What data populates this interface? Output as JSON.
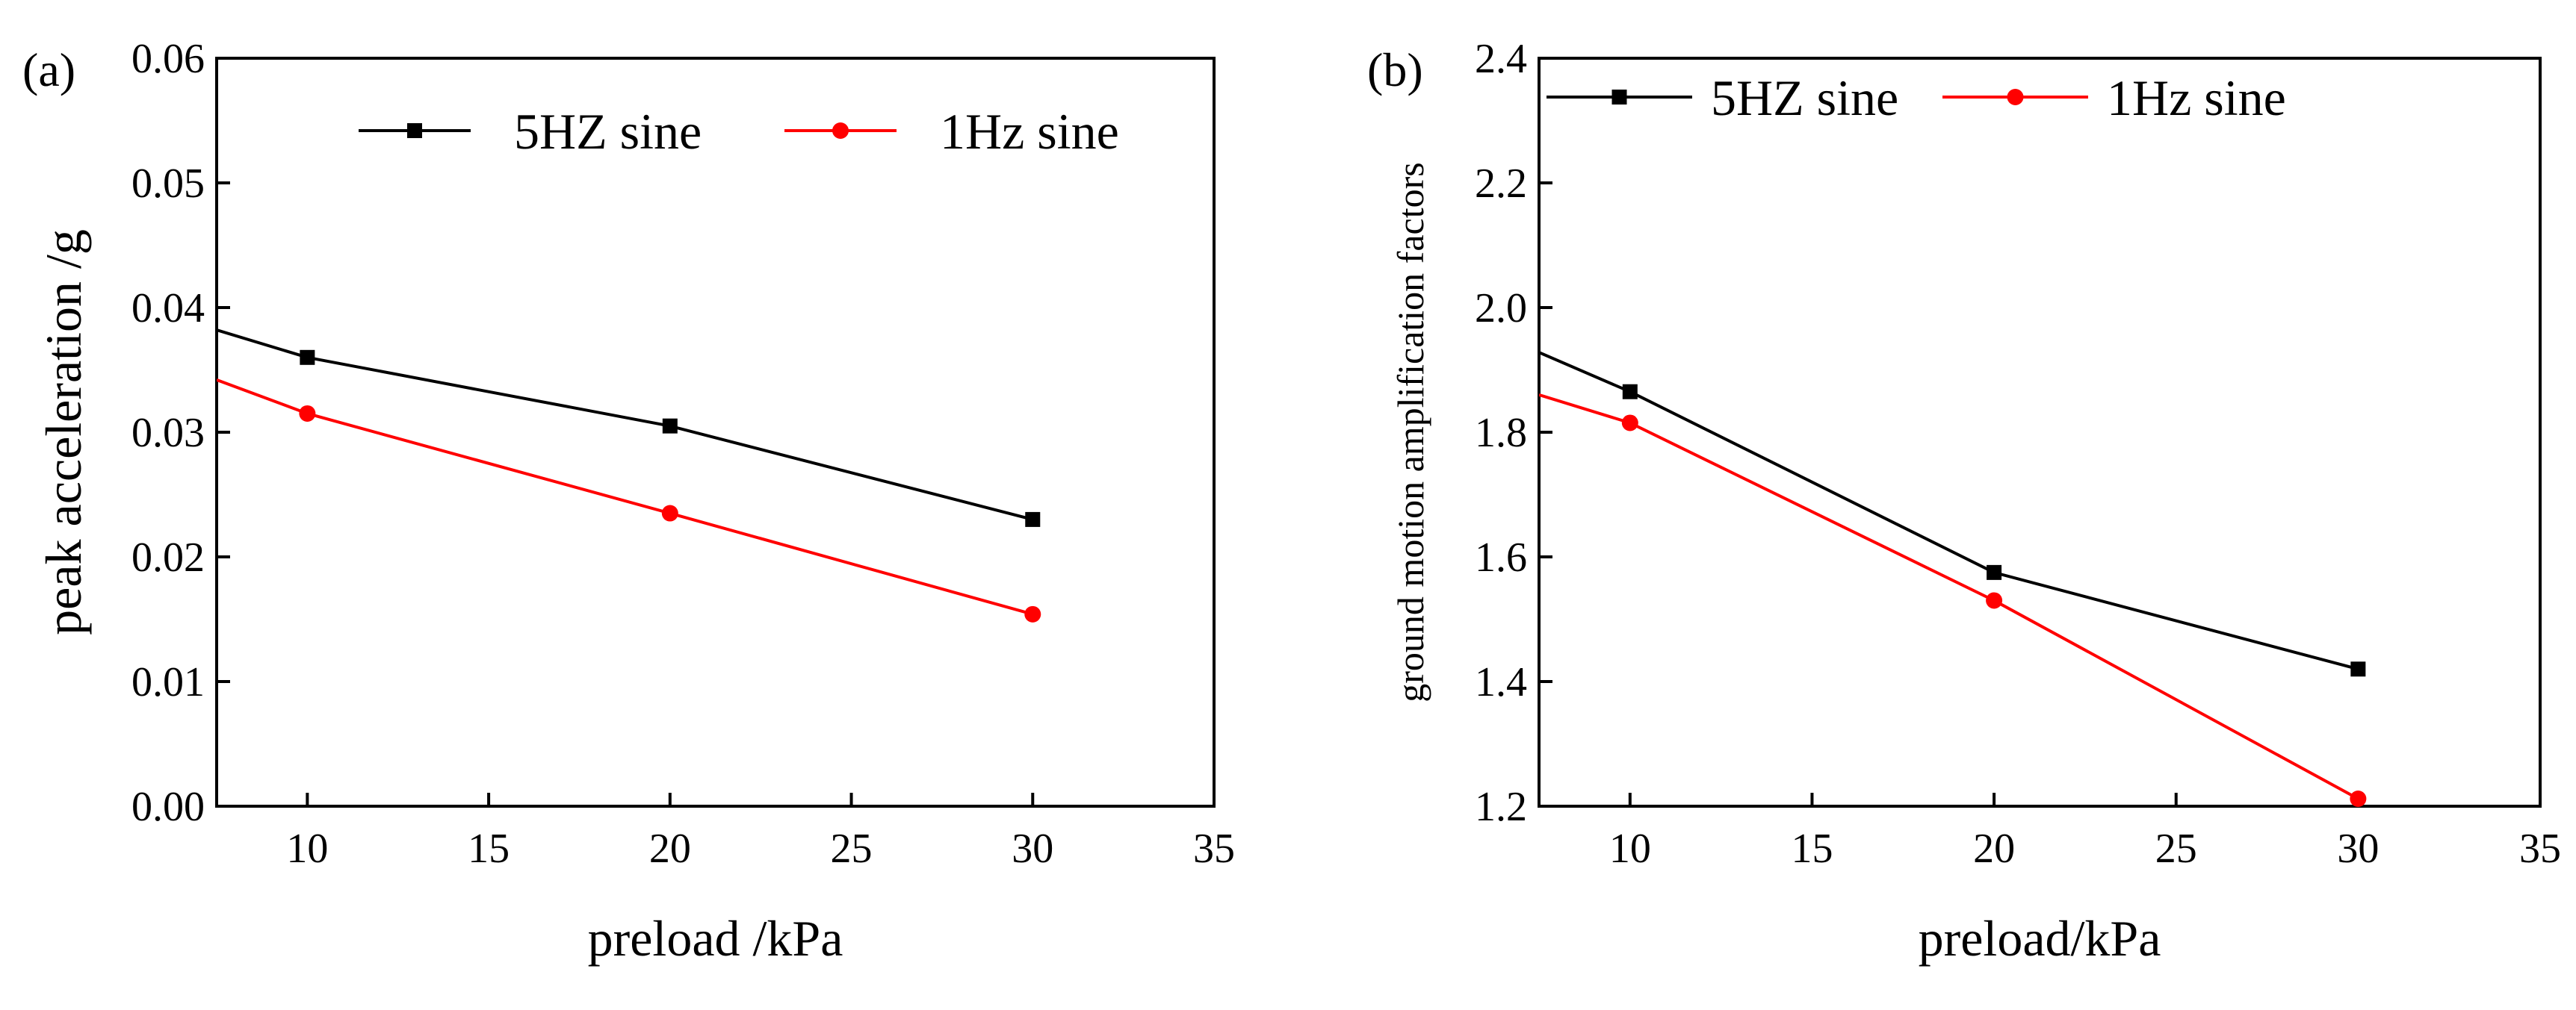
{
  "chart_data": [
    {
      "type": "line",
      "panel_label": "(a)",
      "xlabel": "preload /kPa",
      "ylabel": "peak acceleration /g",
      "xlim": [
        7.5,
        35
      ],
      "ylim": [
        0,
        0.06
      ],
      "xticks": [
        10,
        15,
        20,
        25,
        30,
        35
      ],
      "xtick_labels": [
        "10",
        "15",
        "20",
        "25",
        "30",
        "35"
      ],
      "yticks": [
        0,
        0.01,
        0.02,
        0.03,
        0.04,
        0.05,
        0.06
      ],
      "ytick_labels": [
        "0.00",
        "0.01",
        "0.02",
        "0.03",
        "0.04",
        "0.05",
        "0.06"
      ],
      "legend_position": "top",
      "series": [
        {
          "name": "5HZ sine",
          "color": "#000000",
          "marker": "square",
          "x": [
            10,
            20,
            30
          ],
          "values": [
            0.036,
            0.0305,
            0.023
          ],
          "line_x": [
            7.5,
            10,
            20,
            30
          ],
          "line_values": [
            0.0382,
            0.036,
            0.0305,
            0.023
          ]
        },
        {
          "name": "1Hz sine",
          "color": "#ff0000",
          "marker": "circle",
          "x": [
            10,
            20,
            30
          ],
          "values": [
            0.0315,
            0.0235,
            0.0154
          ],
          "line_x": [
            7.5,
            10,
            20,
            30
          ],
          "line_values": [
            0.0342,
            0.0315,
            0.0235,
            0.0154
          ]
        }
      ]
    },
    {
      "type": "line",
      "panel_label": "(b)",
      "xlabel": "preload/kPa",
      "ylabel": "ground motion amplification factors",
      "xlim": [
        7.5,
        35
      ],
      "ylim": [
        1.2,
        2.4
      ],
      "xticks": [
        10,
        15,
        20,
        25,
        30,
        35
      ],
      "xtick_labels": [
        "10",
        "15",
        "20",
        "25",
        "30",
        "35"
      ],
      "yticks": [
        1.2,
        1.4,
        1.6,
        1.8,
        2.0,
        2.2,
        2.4
      ],
      "ytick_labels": [
        "1.2",
        "1.4",
        "1.6",
        "1.8",
        "2.0",
        "2.2",
        "2.4"
      ],
      "legend_position": "top-left",
      "series": [
        {
          "name": "5HZ sine",
          "color": "#000000",
          "marker": "square",
          "x": [
            10,
            20,
            30
          ],
          "values": [
            1.865,
            1.575,
            1.42
          ],
          "line_x": [
            7.5,
            10,
            20,
            30
          ],
          "line_values": [
            1.928,
            1.865,
            1.575,
            1.42
          ]
        },
        {
          "name": "1Hz sine",
          "color": "#ff0000",
          "marker": "circle",
          "x": [
            10,
            20,
            30
          ],
          "values": [
            1.815,
            1.53,
            1.212
          ],
          "line_x": [
            7.5,
            10,
            20,
            30
          ],
          "line_values": [
            1.86,
            1.815,
            1.53,
            1.212
          ]
        }
      ]
    }
  ]
}
